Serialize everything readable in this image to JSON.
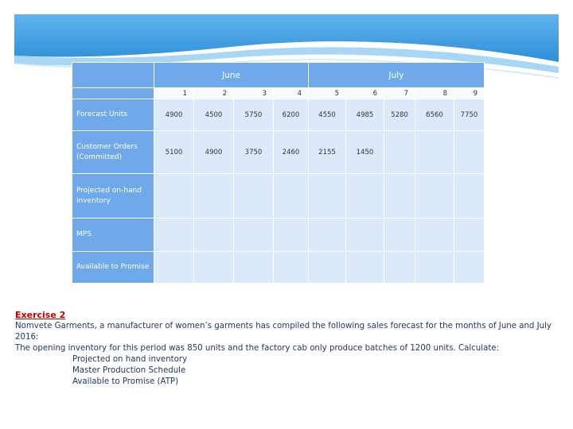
{
  "table": {
    "months": [
      "June",
      "July"
    ],
    "periods": [
      "1",
      "2",
      "3",
      "4",
      "5",
      "6",
      "7",
      "8",
      "9"
    ],
    "rows": [
      {
        "label": "Forecast Units",
        "values": [
          "4900",
          "4500",
          "5750",
          "6200",
          "4550",
          "4985",
          "5280",
          "6560",
          "7750"
        ]
      },
      {
        "label": "Customer Orders (Committed)",
        "values": [
          "5100",
          "4900",
          "3750",
          "2460",
          "2155",
          "1450",
          "",
          "",
          ""
        ]
      },
      {
        "label": "Projected on-hand inventory",
        "values": [
          "",
          "",
          "",
          "",
          "",
          "",
          "",
          "",
          ""
        ]
      },
      {
        "label": "MPS",
        "values": [
          "",
          "",
          "",
          "",
          "",
          "",
          "",
          "",
          ""
        ]
      },
      {
        "label": "Available to Promise",
        "values": [
          "",
          "",
          "",
          "",
          "",
          "",
          "",
          "",
          ""
        ]
      }
    ]
  },
  "exercise": {
    "title": "Exercise 2",
    "line1": "Nomvete Garments, a manufacturer of women’s garments has compiled the following sales forecast for the months of June and July 2016:",
    "line2": "The opening inventory for this period was 850 units and the factory cab only produce batches of 1200 units. Calculate:",
    "items": [
      "Projected on hand inventory",
      "Master Production Schedule",
      "Available to Promise (ATP)"
    ]
  },
  "colors": {
    "header_blue": "#6fa9ea",
    "cell_light": "#dce9fb",
    "exercise_red": "#c00000",
    "text_navy": "#1f3864"
  }
}
